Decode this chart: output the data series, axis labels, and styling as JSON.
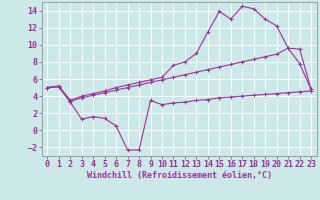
{
  "background_color": "#cce8e8",
  "grid_color": "#ffffff",
  "line_color": "#993399",
  "xlim": [
    -0.5,
    23.5
  ],
  "ylim": [
    -3,
    15
  ],
  "yticks": [
    -2,
    0,
    2,
    4,
    6,
    8,
    10,
    12,
    14
  ],
  "xticks": [
    0,
    1,
    2,
    3,
    4,
    5,
    6,
    7,
    8,
    9,
    10,
    11,
    12,
    13,
    14,
    15,
    16,
    17,
    18,
    19,
    20,
    21,
    22,
    23
  ],
  "xlabel": "Windchill (Refroidissement éolien,°C)",
  "line1_x": [
    0,
    1,
    2,
    3,
    4,
    5,
    6,
    7,
    8,
    9,
    10,
    11,
    12,
    13,
    14,
    15,
    16,
    17,
    18,
    19,
    20,
    21,
    22,
    23
  ],
  "line1_y": [
    5.0,
    5.1,
    3.3,
    1.3,
    1.6,
    1.4,
    0.5,
    -2.3,
    -2.3,
    3.5,
    3.0,
    3.2,
    3.3,
    3.5,
    3.6,
    3.8,
    3.9,
    4.0,
    4.1,
    4.2,
    4.3,
    4.4,
    4.5,
    4.6
  ],
  "line2_x": [
    0,
    1,
    2,
    3,
    4,
    5,
    6,
    7,
    8,
    9,
    10,
    11,
    12,
    13,
    14,
    15,
    16,
    17,
    18,
    19,
    20,
    21,
    22,
    23
  ],
  "line2_y": [
    5.0,
    5.2,
    3.5,
    4.0,
    4.3,
    4.6,
    5.0,
    5.3,
    5.6,
    5.9,
    6.2,
    7.6,
    8.0,
    9.0,
    11.5,
    13.9,
    13.0,
    14.5,
    14.2,
    13.0,
    12.2,
    9.6,
    7.8,
    4.8
  ],
  "line3_x": [
    0,
    1,
    2,
    3,
    4,
    5,
    6,
    7,
    8,
    9,
    10,
    11,
    12,
    13,
    14,
    15,
    16,
    17,
    18,
    19,
    20,
    21,
    22,
    23
  ],
  "line3_y": [
    5.0,
    5.1,
    3.4,
    3.8,
    4.1,
    4.4,
    4.7,
    5.0,
    5.3,
    5.6,
    5.9,
    6.2,
    6.5,
    6.8,
    7.1,
    7.4,
    7.7,
    8.0,
    8.3,
    8.6,
    8.9,
    9.6,
    9.5,
    4.8
  ],
  "font_size": 6,
  "lw": 0.8,
  "ms": 2.5
}
